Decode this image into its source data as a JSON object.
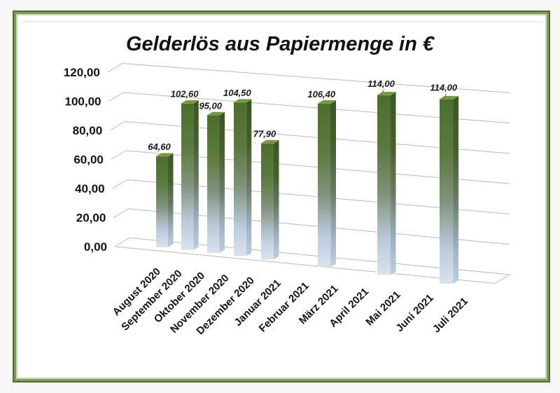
{
  "frame": {
    "border_outer_color": "#4e6b37",
    "border_inner_color": "#7e9b59"
  },
  "chart_data": {
    "type": "bar",
    "style": "3d-column",
    "title": "Gelderlös aus Papiermenge in €",
    "categories": [
      "August 2020",
      "September 2020",
      "Oktober 2020",
      "November 2020",
      "Dezember 2020",
      "Januar 2021",
      "Februar 2021",
      "März 2021",
      "April 2021",
      "Mai 2021",
      "Juni 2021",
      "Juli 2021"
    ],
    "values": [
      64.6,
      102.6,
      95.0,
      104.5,
      77.9,
      null,
      106.4,
      null,
      114.0,
      null,
      114.0,
      null
    ],
    "data_labels": [
      "64,60",
      "102,60",
      "95,00",
      "104,50",
      "77,90",
      null,
      "106,40",
      null,
      "114,00",
      null,
      "114,00",
      null
    ],
    "leader_line_indices": [
      8,
      10
    ],
    "y_ticks": [
      "0,00",
      "20,00",
      "40,00",
      "60,00",
      "80,00",
      "100,00",
      "120,00"
    ],
    "ylim": [
      0,
      120
    ],
    "xlabel": "",
    "ylabel": "",
    "grid": true,
    "legend": false,
    "colors": {
      "bar_front_top": "#4d6e2f",
      "bar_front_mid": "#80927b",
      "bar_front_bottom": "#d9e3ef",
      "bar_side_top": "#3b5522",
      "bar_side_bottom": "#bfcedd",
      "bar_cap": "#769548",
      "gridline": "#b9b9b9",
      "chart_area_border": "#d9d9d6",
      "text": "#141414"
    }
  }
}
